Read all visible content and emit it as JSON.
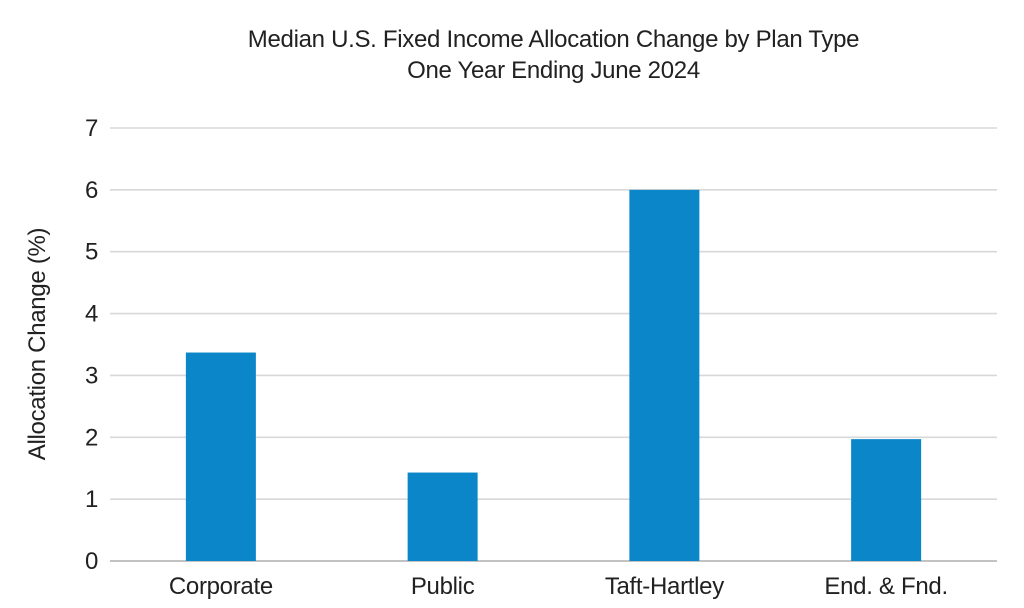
{
  "chart_data": {
    "type": "bar",
    "title": "Median U.S. Fixed Income Allocation Change by Plan Type",
    "subtitle": "One Year Ending June 2024",
    "ylabel": "Allocation Change (%)",
    "xlabel": "",
    "categories": [
      "Corporate",
      "Public",
      "Taft-Hartley",
      "End. & Fnd."
    ],
    "values": [
      3.37,
      1.43,
      6.0,
      1.97
    ],
    "ylim": [
      0,
      7
    ],
    "ytick_step": 1,
    "ytick_labels": [
      "0",
      "1",
      "2",
      "3",
      "4",
      "5",
      "6",
      "7"
    ],
    "grid": true,
    "legend": false,
    "colors": {
      "bar": "#0b86c8",
      "gridline": "#d8d8d8",
      "axis_line": "#c2c2c2",
      "text": "#212121",
      "background": "#ffffff"
    }
  }
}
